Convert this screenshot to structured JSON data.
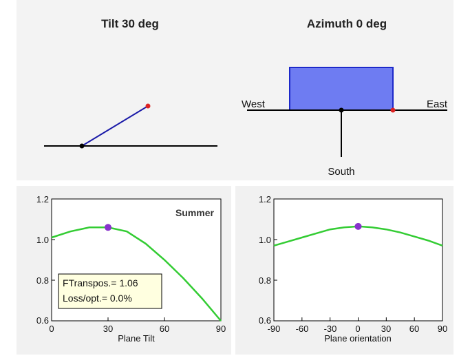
{
  "tilt_view": {
    "title": "Tilt 30 deg"
  },
  "azimuth_view": {
    "title": "Azimuth 0 deg",
    "west_label": "West",
    "east_label": "East",
    "south_label": "South"
  },
  "tilt_chart": {
    "season_label": "Summer",
    "info": {
      "transpos": "FTranspos.= 1.06",
      "loss": "Loss/opt.= 0.0%"
    },
    "y_ticks": [
      "1.2",
      "1.0",
      "0.8",
      "0.6"
    ],
    "x_ticks": [
      "0",
      "30",
      "60",
      "90"
    ],
    "xlabel": "Plane Tilt"
  },
  "orientation_chart": {
    "y_ticks": [
      "1.2",
      "1.0",
      "0.8",
      "0.6"
    ],
    "x_ticks": [
      "-90",
      "-60",
      "-30",
      "0",
      "30",
      "60",
      "90"
    ],
    "xlabel": "Plane orientation"
  },
  "colors": {
    "curve": "#33cc33",
    "marker": "#8833cc",
    "plane_fill": "#6e7cf2",
    "plane_stroke": "#1d29c9",
    "tilt_line": "#1a1aa8",
    "red_point": "#dd2222"
  },
  "chart_data": [
    {
      "type": "line",
      "xlabel": "Plane Tilt",
      "ylim": [
        0.6,
        1.2
      ],
      "xlim": [
        0,
        90
      ],
      "series": [
        {
          "x": [
            0,
            10,
            20,
            30,
            40,
            50,
            60,
            70,
            80,
            90
          ],
          "values": [
            1.01,
            1.04,
            1.06,
            1.06,
            1.04,
            0.98,
            0.9,
            0.81,
            0.71,
            0.6
          ]
        }
      ],
      "marker": {
        "x": 30,
        "y": 1.06
      }
    },
    {
      "type": "line",
      "xlabel": "Plane orientation",
      "ylim": [
        0.6,
        1.2
      ],
      "xlim": [
        -90,
        90
      ],
      "series": [
        {
          "x": [
            -90,
            -75,
            -60,
            -45,
            -30,
            -15,
            0,
            15,
            30,
            45,
            60,
            75,
            90
          ],
          "values": [
            0.97,
            0.99,
            1.01,
            1.03,
            1.05,
            1.06,
            1.065,
            1.06,
            1.05,
            1.035,
            1.015,
            0.995,
            0.97
          ]
        }
      ],
      "marker": {
        "x": 0,
        "y": 1.065
      }
    }
  ]
}
